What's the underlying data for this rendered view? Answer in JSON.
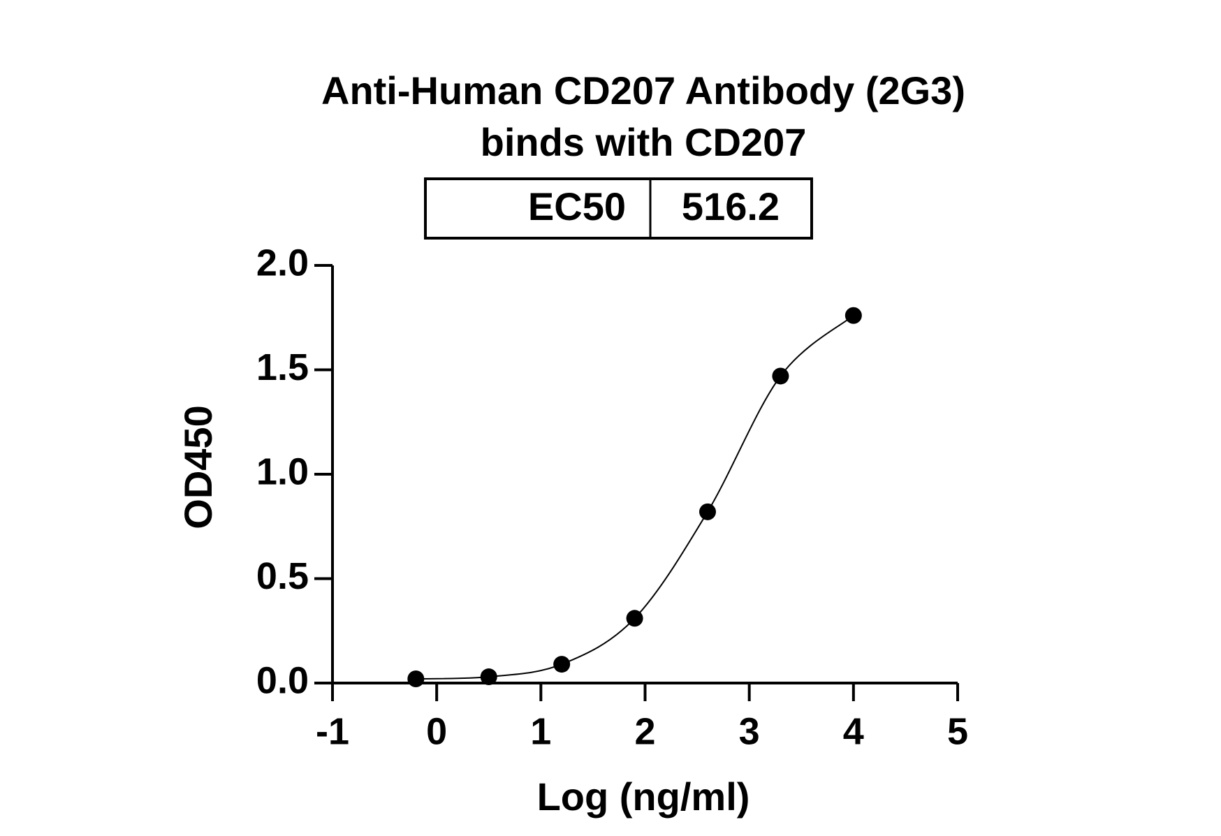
{
  "chart_data": {
    "type": "scatter",
    "title": [
      "Anti-Human CD207 Antibody (2G3)",
      "binds with CD207"
    ],
    "table": {
      "label": "EC50",
      "value": 516.2
    },
    "x_label": "Log (ng/ml)",
    "y_label": "OD450",
    "series": [
      {
        "color": "#000000",
        "x": [
          -0.2,
          0.5,
          1.2,
          1.9,
          2.6,
          3.3,
          4.0
        ],
        "values": [
          0.02,
          0.03,
          0.09,
          0.31,
          0.82,
          1.47,
          1.76
        ]
      }
    ],
    "xlim": [
      -1,
      5
    ],
    "xticks": [
      -1,
      0,
      1,
      2,
      3,
      4,
      5
    ],
    "ylim": [
      0,
      2
    ],
    "yticks": [
      {
        "value": 0,
        "label": "0.0"
      },
      {
        "value": 0.5,
        "label": "0.5"
      },
      {
        "value": 1,
        "label": "1.0"
      },
      {
        "value": 1.5,
        "label": "1.5"
      },
      {
        "value": 2,
        "label": "2.0"
      }
    ],
    "grid": false
  }
}
